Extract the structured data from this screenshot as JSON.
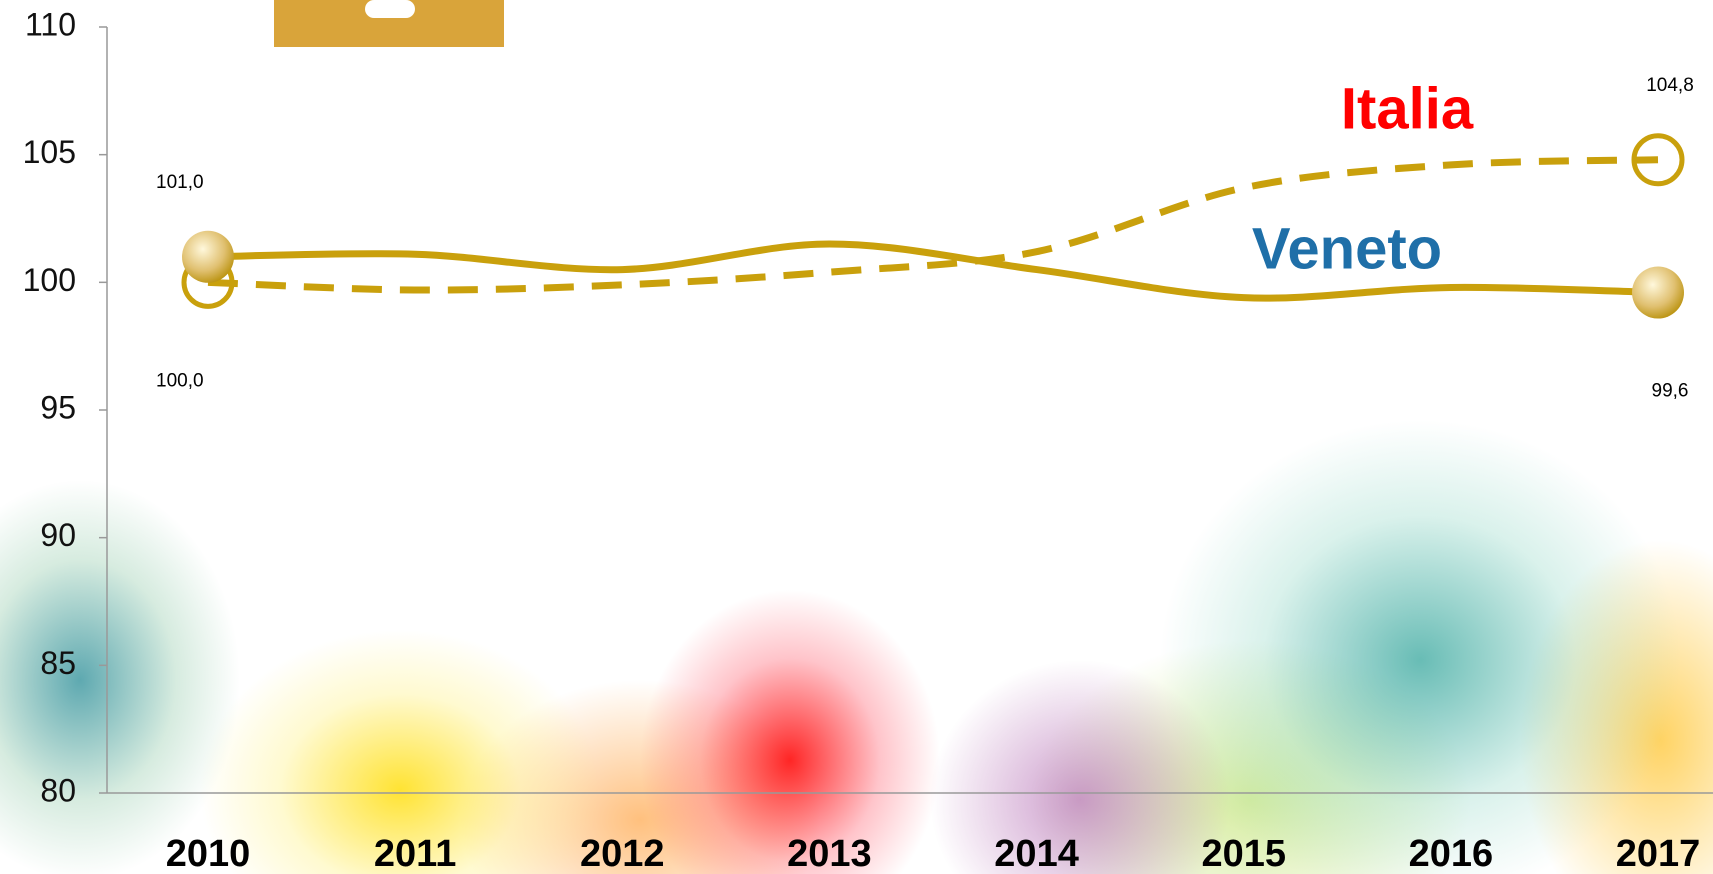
{
  "chart_data": {
    "type": "line",
    "categories": [
      "2010",
      "2011",
      "2012",
      "2013",
      "2014",
      "2015",
      "2016",
      "2017"
    ],
    "series": [
      {
        "name": "Italia",
        "color": "#c9a00c",
        "label_color": "#ff0000",
        "dashed": true,
        "marker": "hollow",
        "values": [
          100.0,
          99.7,
          99.9,
          100.4,
          101.2,
          103.7,
          104.6,
          104.8
        ],
        "value_labels": [
          "100,0",
          null,
          null,
          null,
          null,
          null,
          null,
          "104,8"
        ]
      },
      {
        "name": "Veneto",
        "color": "#c9a00c",
        "label_color": "#1f6fa8",
        "dashed": false,
        "marker": "filled",
        "values": [
          101.0,
          101.1,
          100.5,
          101.5,
          100.5,
          99.4,
          99.8,
          99.6
        ],
        "value_labels": [
          "101,0",
          null,
          null,
          null,
          null,
          null,
          null,
          "99,6"
        ]
      }
    ],
    "ylim": [
      80,
      110
    ],
    "yticks": [
      80,
      85,
      90,
      95,
      100,
      105,
      110
    ]
  }
}
